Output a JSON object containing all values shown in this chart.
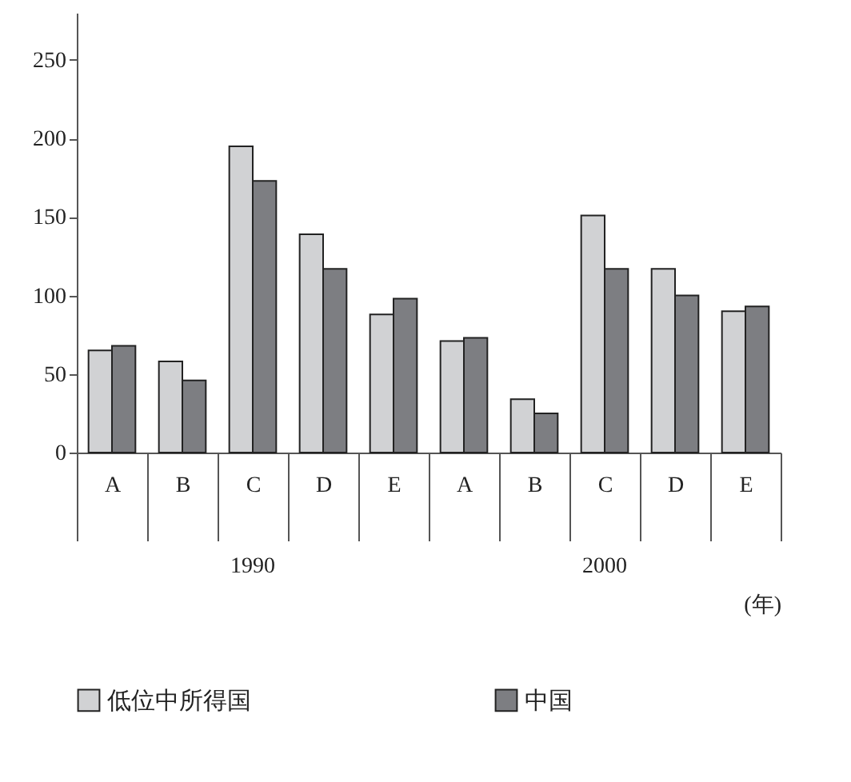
{
  "chart_data": {
    "type": "bar",
    "categories": [
      "A",
      "B",
      "C",
      "D",
      "E",
      "A",
      "B",
      "C",
      "D",
      "E"
    ],
    "series": [
      {
        "name": "低位中所得国",
        "color": "#d1d2d4",
        "values": [
          65,
          58,
          195,
          139,
          88,
          71,
          34,
          151,
          117,
          90
        ]
      },
      {
        "name": "中国",
        "color": "#7d7e82",
        "values": [
          68,
          46,
          173,
          117,
          98,
          73,
          25,
          117,
          100,
          93
        ]
      }
    ],
    "ylim": [
      0,
      280
    ],
    "yticks": [
      0,
      50,
      100,
      150,
      200,
      250
    ],
    "xlabel": "(年)",
    "annotations": [
      "1990",
      "2000"
    ],
    "legend": "bottom",
    "grid": false
  }
}
